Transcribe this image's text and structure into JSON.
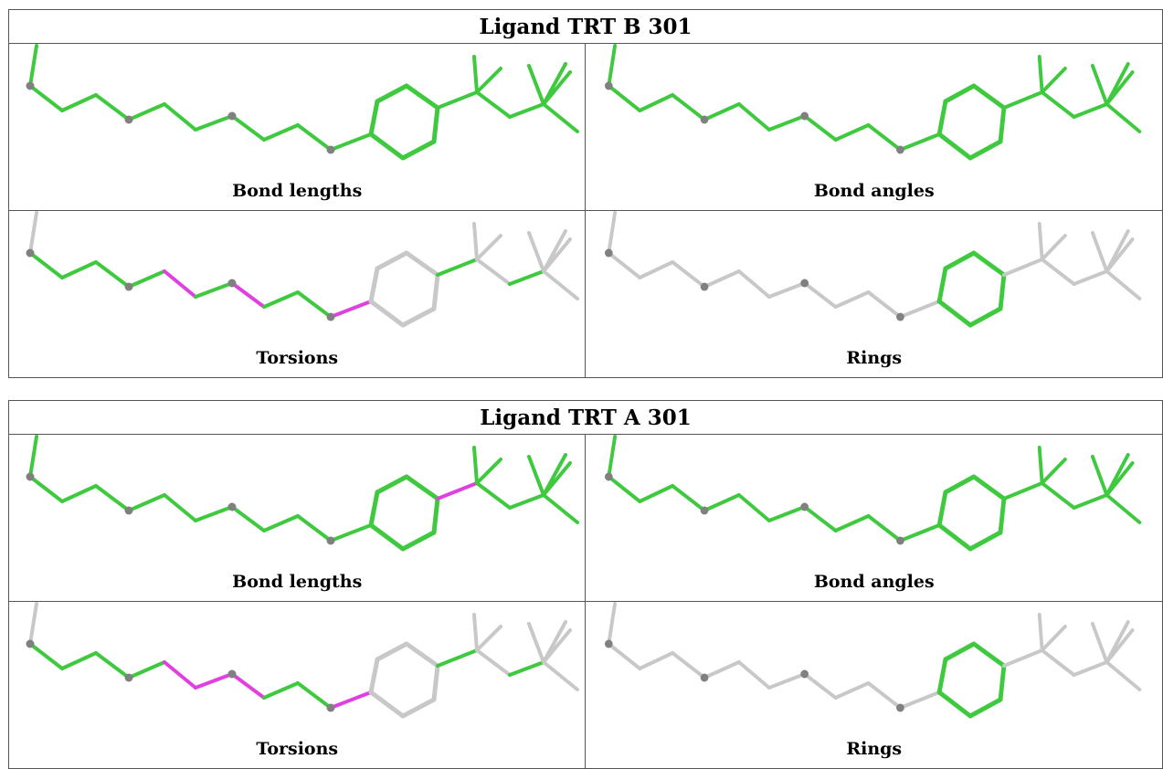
{
  "panels": [
    {
      "title": "Ligand TRT B 301",
      "cells": [
        {
          "label": "Bond lengths",
          "highlight": "bond-lengths-ok"
        },
        {
          "label": "Bond angles",
          "highlight": "bond-angles-ok"
        },
        {
          "label": "Torsions",
          "highlight": "torsions-b"
        },
        {
          "label": "Rings",
          "highlight": "rings"
        }
      ]
    },
    {
      "title": "Ligand TRT A 301",
      "cells": [
        {
          "label": "Bond lengths",
          "highlight": "bond-lengths-a"
        },
        {
          "label": "Bond angles",
          "highlight": "bond-angles-ok"
        },
        {
          "label": "Torsions",
          "highlight": "torsions-a"
        },
        {
          "label": "Rings",
          "highlight": "rings"
        }
      ]
    }
  ],
  "colors": {
    "ok": "#3ec93e",
    "outlier": "#e040e0",
    "neutral": "#c8c8c8",
    "atom": "#808080"
  }
}
